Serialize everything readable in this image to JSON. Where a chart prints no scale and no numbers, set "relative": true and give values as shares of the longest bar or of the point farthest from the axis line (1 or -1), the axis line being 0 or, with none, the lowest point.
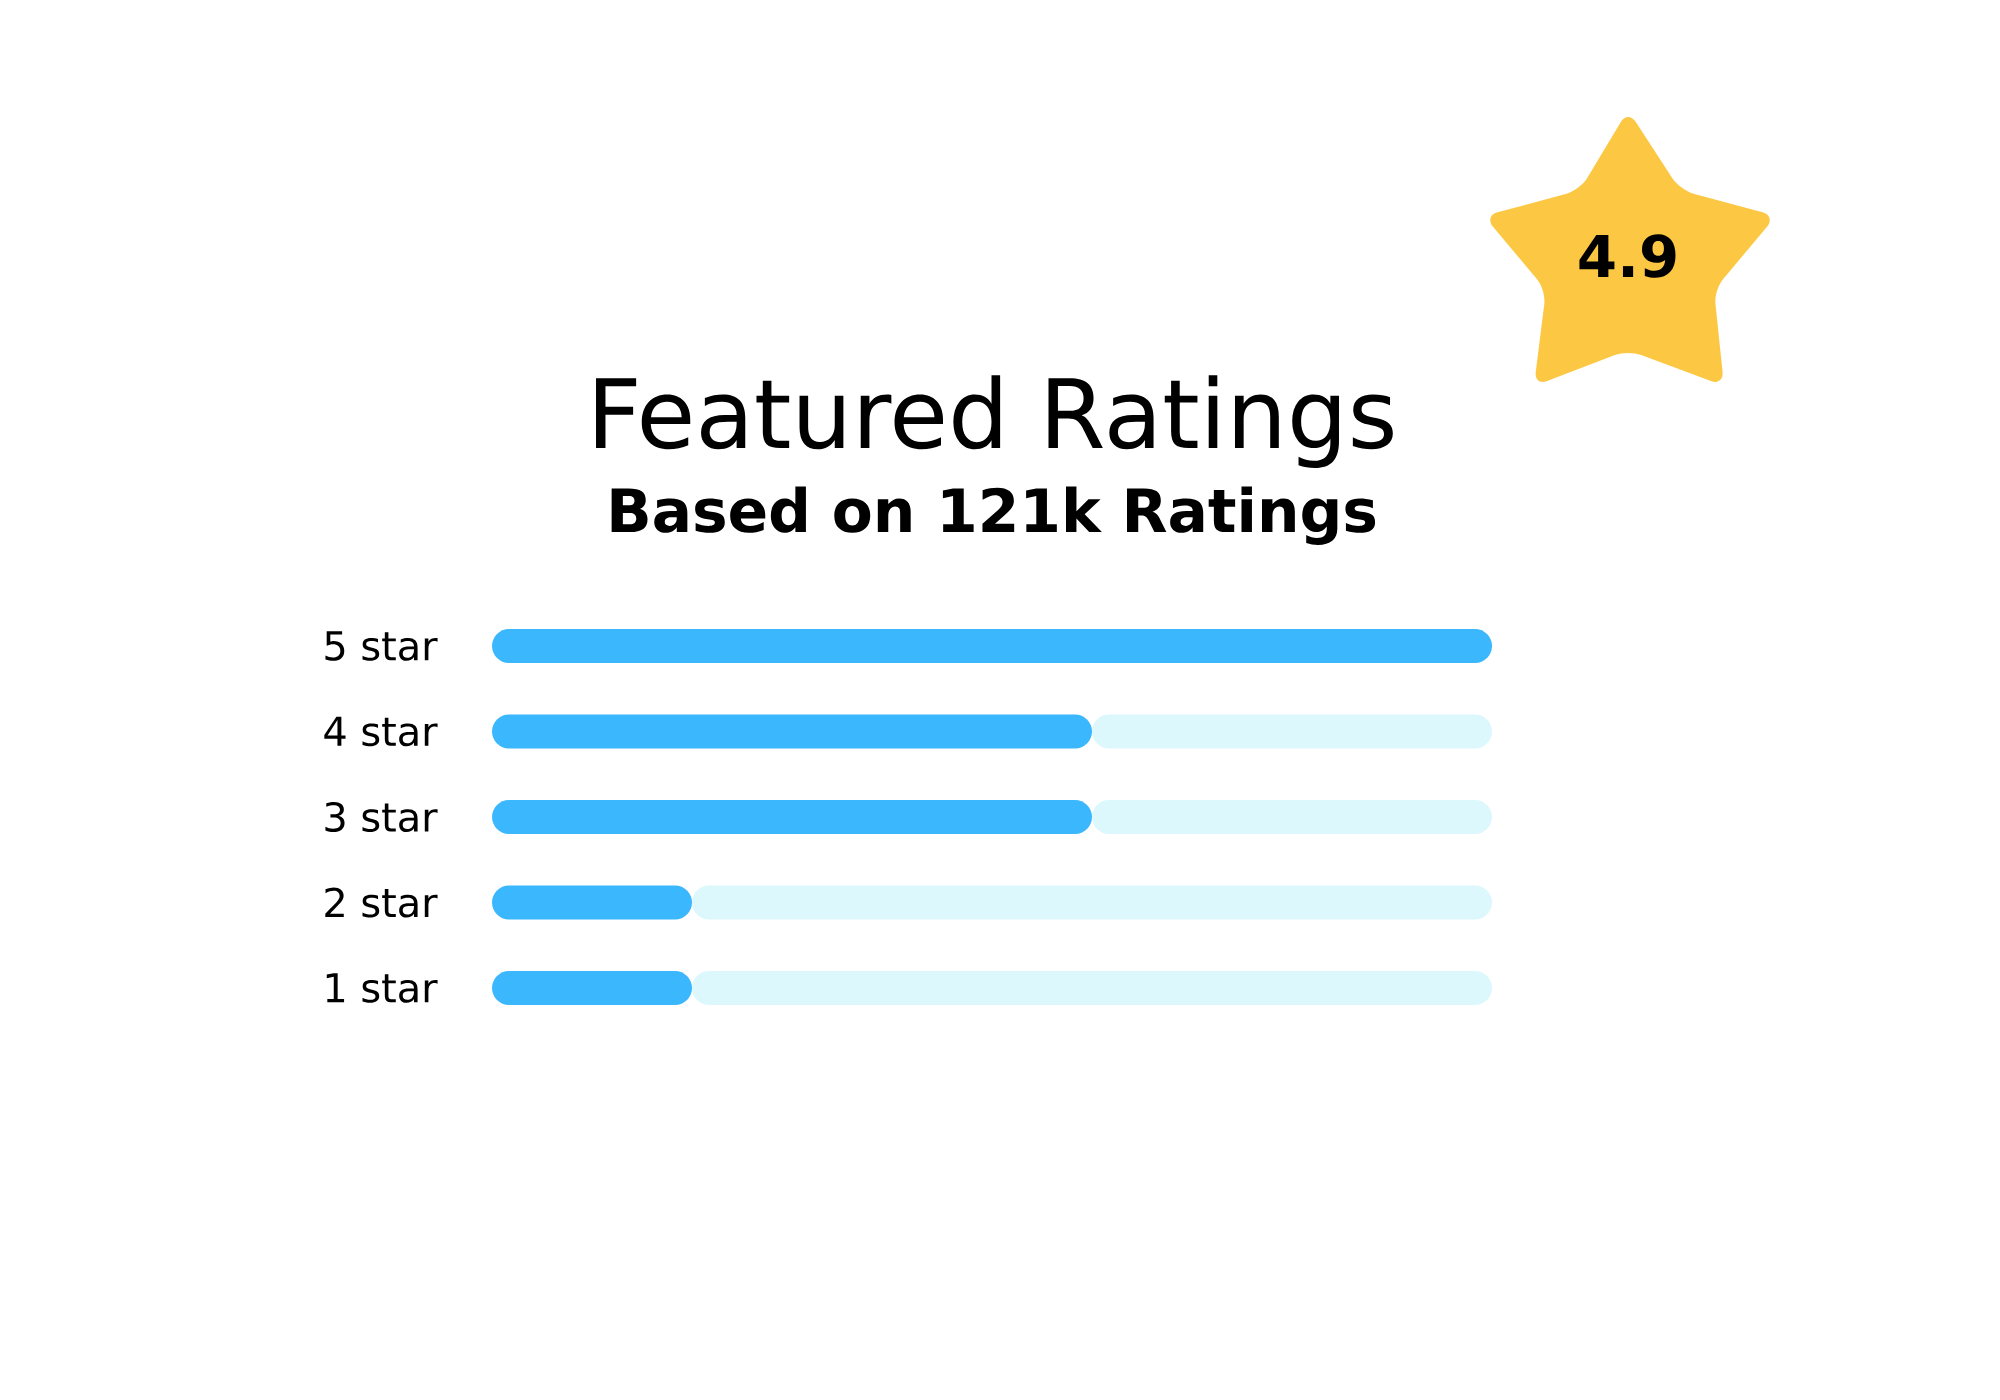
{
  "chart_data": {
    "type": "bar",
    "orientation": "horizontal",
    "stacked": true,
    "relative": true,
    "title": "Featured Ratings",
    "subtitle": "Based on 121k Ratings",
    "annotations": [
      "4.9"
    ],
    "categories": [
      "5 star",
      "4 star",
      "3 star",
      "2 star",
      "1 star"
    ],
    "series": [
      {
        "color": "#3bb7fe",
        "values": [
          1,
          0.6,
          0.6,
          0.2,
          0.2
        ]
      },
      {
        "color": "#dcf8fd",
        "values": [
          0,
          0.4,
          0.4,
          0.8,
          0.8
        ]
      }
    ]
  }
}
